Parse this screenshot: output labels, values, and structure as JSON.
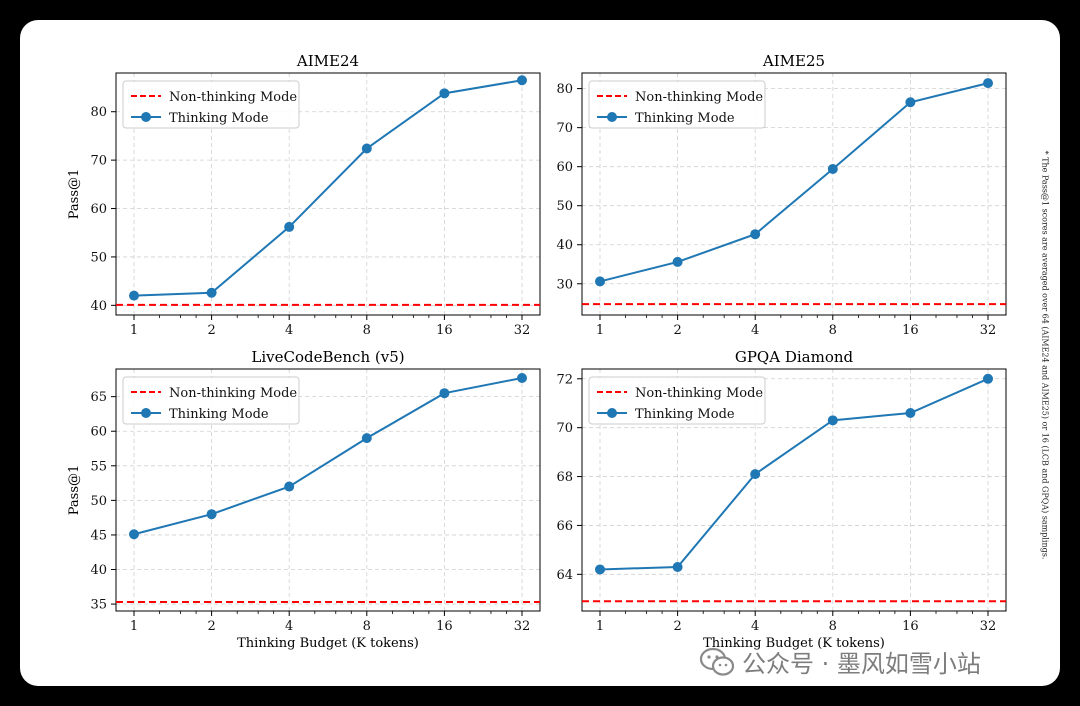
{
  "footnote": "* The Pass@1 scores are averaged over 64 (AIME24 and AIME25) or 16 (LCB and GPQA) samplings.",
  "watermark": {
    "text": "公众号 · 墨风如雪小站",
    "icon": "wechat-icon"
  },
  "colors": {
    "thinking": "#1f77b4",
    "nonthinking": "#ff0000",
    "grid": "#d0d0d0"
  },
  "legend": {
    "nonthinking": "Non-thinking Mode",
    "thinking": "Thinking Mode"
  },
  "chart_data": [
    {
      "type": "line",
      "title": "AIME24",
      "xlabel": "",
      "ylabel": "Pass@1",
      "categories": [
        "1",
        "2",
        "4",
        "8",
        "16",
        "32"
      ],
      "ylim": [
        38,
        88
      ],
      "yticks": [
        40,
        50,
        60,
        70,
        80
      ],
      "series": [
        {
          "name": "Thinking Mode",
          "values": [
            42.0,
            42.6,
            56.2,
            72.4,
            83.8,
            86.5
          ]
        }
      ],
      "baseline": {
        "name": "Non-thinking Mode",
        "value": 40.1
      }
    },
    {
      "type": "line",
      "title": "AIME25",
      "xlabel": "",
      "ylabel": "",
      "categories": [
        "1",
        "2",
        "4",
        "8",
        "16",
        "32"
      ],
      "ylim": [
        22,
        84
      ],
      "yticks": [
        30,
        40,
        50,
        60,
        70,
        80
      ],
      "series": [
        {
          "name": "Thinking Mode",
          "values": [
            30.6,
            35.6,
            42.7,
            59.4,
            76.5,
            81.4
          ]
        }
      ],
      "baseline": {
        "name": "Non-thinking Mode",
        "value": 24.8
      }
    },
    {
      "type": "line",
      "title": "LiveCodeBench (v5)",
      "xlabel": "Thinking Budget (K tokens)",
      "ylabel": "Pass@1",
      "categories": [
        "1",
        "2",
        "4",
        "8",
        "16",
        "32"
      ],
      "ylim": [
        34,
        69
      ],
      "yticks": [
        35,
        40,
        45,
        50,
        55,
        60,
        65
      ],
      "series": [
        {
          "name": "Thinking Mode",
          "values": [
            45.1,
            48.0,
            52.0,
            59.0,
            65.5,
            67.7
          ]
        }
      ],
      "baseline": {
        "name": "Non-thinking Mode",
        "value": 35.3
      }
    },
    {
      "type": "line",
      "title": "GPQA Diamond",
      "xlabel": "Thinking Budget (K tokens)",
      "ylabel": "",
      "categories": [
        "1",
        "2",
        "4",
        "8",
        "16",
        "32"
      ],
      "ylim": [
        62.5,
        72.4
      ],
      "yticks": [
        64,
        66,
        68,
        70,
        72
      ],
      "series": [
        {
          "name": "Thinking Mode",
          "values": [
            64.2,
            64.3,
            68.1,
            70.3,
            70.6,
            72.0
          ]
        }
      ],
      "baseline": {
        "name": "Non-thinking Mode",
        "value": 62.9
      }
    }
  ]
}
